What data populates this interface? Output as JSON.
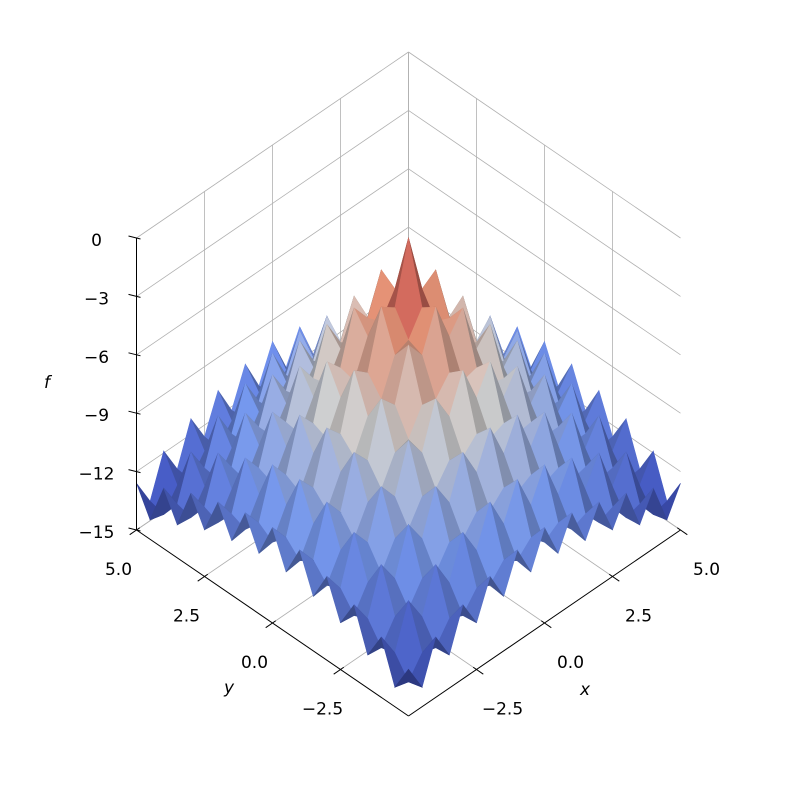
{
  "chart_data": {
    "type": "surface",
    "x_label": "x",
    "y_label": "y",
    "z_label": "f",
    "x": [
      -5,
      -4.5,
      -4,
      -3.5,
      -3,
      -2.5,
      -2,
      -1.5,
      -1,
      -0.5,
      0,
      0.5,
      1,
      1.5,
      2,
      2.5,
      3,
      3.5,
      4,
      4.5,
      5
    ],
    "y": [
      -5,
      -4.5,
      -4,
      -3.5,
      -3,
      -2.5,
      -2,
      -1.5,
      -1,
      -0.5,
      0,
      0.5,
      1,
      1.5,
      2,
      2.5,
      3,
      3.5,
      4,
      4.5,
      5
    ],
    "z": [
      [
        -12.6,
        -14.0,
        -11.9,
        -13.3,
        -11.2,
        -12.6,
        -10.7,
        -12.2,
        -10.3,
        -11.9,
        -10.1,
        -11.9,
        -10.3,
        -12.2,
        -10.7,
        -12.6,
        -11.2,
        -13.3,
        -11.9,
        -14.0,
        -12.6
      ],
      [
        -14.0,
        -14.2,
        -13.2,
        -13.4,
        -12.4,
        -12.7,
        -11.8,
        -12.1,
        -11.3,
        -11.8,
        -11.1,
        -11.8,
        -11.3,
        -12.1,
        -11.8,
        -12.7,
        -12.4,
        -13.4,
        -13.2,
        -14.2,
        -14.0
      ],
      [
        -11.9,
        -13.2,
        -11.0,
        -12.3,
        -10.1,
        -11.5,
        -9.4,
        -10.8,
        -8.8,
        -10.4,
        -8.6,
        -10.4,
        -8.8,
        -10.8,
        -9.4,
        -11.5,
        -10.1,
        -12.3,
        -11.0,
        -13.2,
        -11.9
      ],
      [
        -13.3,
        -13.4,
        -12.3,
        -12.4,
        -11.3,
        -11.5,
        -10.4,
        -10.7,
        -9.8,
        -10.2,
        -9.5,
        -10.2,
        -9.8,
        -10.7,
        -10.4,
        -11.5,
        -11.3,
        -12.4,
        -12.3,
        -13.4,
        -13.3
      ],
      [
        -11.2,
        -12.4,
        -10.1,
        -11.3,
        -9.0,
        -10.2,
        -8.0,
        -9.3,
        -7.2,
        -8.7,
        -6.9,
        -8.7,
        -7.2,
        -9.3,
        -8.0,
        -10.2,
        -9.0,
        -11.3,
        -10.1,
        -12.4,
        -11.2
      ],
      [
        -12.6,
        -12.7,
        -11.5,
        -11.5,
        -10.2,
        -10.2,
        -9.0,
        -9.1,
        -8.1,
        -8.4,
        -7.7,
        -8.4,
        -8.1,
        -9.1,
        -9.0,
        -10.2,
        -10.2,
        -11.5,
        -11.5,
        -12.7,
        -12.6
      ],
      [
        -10.7,
        -11.8,
        -9.4,
        -10.4,
        -8.0,
        -9.0,
        -6.6,
        -7.7,
        -5.4,
        -6.8,
        -4.9,
        -6.8,
        -5.4,
        -7.7,
        -6.6,
        -9.0,
        -8.0,
        -10.4,
        -9.4,
        -11.8,
        -10.7
      ],
      [
        -12.2,
        -12.1,
        -10.8,
        -10.7,
        -9.3,
        -9.1,
        -7.7,
        -7.5,
        -6.2,
        -6.4,
        -5.5,
        -6.4,
        -6.2,
        -7.5,
        -7.7,
        -9.1,
        -9.3,
        -10.7,
        -10.8,
        -12.1,
        -12.2
      ],
      [
        -10.3,
        -11.3,
        -8.8,
        -9.8,
        -7.2,
        -8.1,
        -5.4,
        -6.2,
        -3.6,
        -4.6,
        -2.6,
        -4.6,
        -3.6,
        -6.2,
        -5.4,
        -8.1,
        -7.2,
        -9.8,
        -8.8,
        -11.3,
        -10.3
      ],
      [
        -11.9,
        -11.8,
        -10.4,
        -10.2,
        -8.7,
        -8.4,
        -6.8,
        -6.4,
        -4.6,
        -4.3,
        -3.1,
        -4.3,
        -4.6,
        -6.4,
        -6.8,
        -8.4,
        -8.7,
        -10.2,
        -10.4,
        -11.8,
        -11.9
      ],
      [
        -10.1,
        -11.1,
        -8.6,
        -9.5,
        -6.9,
        -7.7,
        -4.9,
        -5.5,
        -2.6,
        -3.1,
        0.0,
        -3.1,
        -2.6,
        -5.5,
        -4.9,
        -7.7,
        -6.9,
        -9.5,
        -8.6,
        -11.1,
        -10.1
      ],
      [
        -11.9,
        -11.8,
        -10.4,
        -10.2,
        -8.7,
        -8.4,
        -6.8,
        -6.4,
        -4.6,
        -4.3,
        -3.1,
        -4.3,
        -4.6,
        -6.4,
        -6.8,
        -8.4,
        -8.7,
        -10.2,
        -10.4,
        -11.8,
        -11.9
      ],
      [
        -10.3,
        -11.3,
        -8.8,
        -9.8,
        -7.2,
        -8.1,
        -5.4,
        -6.2,
        -3.6,
        -4.6,
        -2.6,
        -4.6,
        -3.6,
        -6.2,
        -5.4,
        -8.1,
        -7.2,
        -9.8,
        -8.8,
        -11.3,
        -10.3
      ],
      [
        -12.2,
        -12.1,
        -10.8,
        -10.7,
        -9.3,
        -9.1,
        -7.7,
        -7.5,
        -6.2,
        -6.4,
        -5.5,
        -6.4,
        -6.2,
        -7.5,
        -7.7,
        -9.1,
        -9.3,
        -10.7,
        -10.8,
        -12.1,
        -12.2
      ],
      [
        -10.7,
        -11.8,
        -9.4,
        -10.4,
        -8.0,
        -9.0,
        -6.6,
        -7.7,
        -5.4,
        -6.8,
        -4.9,
        -6.8,
        -5.4,
        -7.7,
        -6.6,
        -9.0,
        -8.0,
        -10.4,
        -9.4,
        -11.8,
        -10.7
      ],
      [
        -12.6,
        -12.7,
        -11.5,
        -11.5,
        -10.2,
        -10.2,
        -9.0,
        -9.1,
        -8.1,
        -8.4,
        -7.7,
        -8.4,
        -8.1,
        -9.1,
        -9.0,
        -10.2,
        -10.2,
        -11.5,
        -11.5,
        -12.7,
        -12.6
      ],
      [
        -11.2,
        -12.4,
        -10.1,
        -11.3,
        -9.0,
        -10.2,
        -8.0,
        -9.3,
        -7.2,
        -8.7,
        -6.9,
        -8.7,
        -7.2,
        -9.3,
        -8.0,
        -10.2,
        -9.0,
        -11.3,
        -10.1,
        -12.4,
        -11.2
      ],
      [
        -13.3,
        -13.4,
        -12.3,
        -12.4,
        -11.3,
        -11.5,
        -10.4,
        -10.7,
        -9.8,
        -10.2,
        -9.5,
        -10.2,
        -9.8,
        -10.7,
        -10.4,
        -11.5,
        -11.3,
        -12.4,
        -12.3,
        -13.4,
        -13.3
      ],
      [
        -11.9,
        -13.2,
        -11.0,
        -12.3,
        -10.1,
        -11.5,
        -9.4,
        -10.8,
        -8.8,
        -10.4,
        -8.6,
        -10.4,
        -8.8,
        -10.8,
        -9.4,
        -11.5,
        -10.1,
        -12.3,
        -11.0,
        -13.2,
        -11.9
      ],
      [
        -14.0,
        -14.2,
        -13.2,
        -13.4,
        -12.4,
        -12.7,
        -11.8,
        -12.1,
        -11.3,
        -11.8,
        -11.1,
        -11.8,
        -11.3,
        -12.1,
        -11.8,
        -12.7,
        -12.4,
        -13.4,
        -13.2,
        -14.2,
        -14.0
      ],
      [
        -12.6,
        -14.0,
        -11.9,
        -13.3,
        -11.2,
        -12.6,
        -10.7,
        -12.2,
        -10.3,
        -11.9,
        -10.1,
        -11.9,
        -10.3,
        -12.2,
        -10.7,
        -12.6,
        -11.2,
        -13.3,
        -11.9,
        -14.0,
        -12.6
      ]
    ],
    "colors": [
      "#3b4cc0",
      "#7b9ff9",
      "#dddddd",
      "#f49a7b",
      "#b40426"
    ],
    "xlim": [
      -5,
      5
    ],
    "ylim": [
      -5,
      5
    ],
    "zlim": [
      -15,
      0
    ],
    "xticks": [
      {
        "value": -2.5,
        "label": "−2.5"
      },
      {
        "value": 0,
        "label": "0.0"
      },
      2.5,
      {
        "value": 5,
        "label": "5.0"
      }
    ],
    "yticks": [
      {
        "value": -2.5,
        "label": "−2.5"
      },
      {
        "value": 0,
        "label": "0.0"
      },
      2.5,
      {
        "value": 5,
        "label": "5.0"
      }
    ],
    "zticks": [
      0,
      {
        "value": -3,
        "label": "−3"
      },
      {
        "value": -6,
        "label": "−6"
      },
      {
        "value": -9,
        "label": "−9"
      },
      {
        "value": -12,
        "label": "−12"
      },
      {
        "value": -15,
        "label": "−15"
      }
    ],
    "grid": true
  }
}
